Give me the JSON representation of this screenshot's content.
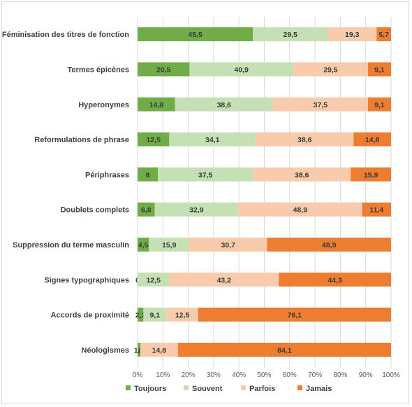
{
  "chart_data": {
    "type": "bar",
    "orientation": "horizontal",
    "stacked": "percent",
    "title": "",
    "xlabel": "",
    "ylabel": "",
    "xlim": [
      0,
      100
    ],
    "grid": true,
    "legend_position": "bottom",
    "categories": [
      "Féminisation des titres de fonction",
      "Termes épicènes",
      "Hyperonymes",
      "Reformulations de phrase",
      "Périphrases",
      "Doublets complets",
      "Suppression du terme masculin",
      "Signes typographiques",
      "Accords de proximité",
      "Néologismes"
    ],
    "series": [
      {
        "name": "Toujours",
        "color": "#70ad47",
        "values": [
          45.5,
          20.5,
          14.8,
          12.5,
          8,
          6.8,
          4.5,
          0,
          2.3,
          1.1
        ],
        "labels": [
          "45,5",
          "20,5",
          "14,8",
          "12,5",
          "8",
          "6,8",
          "4,5",
          "0",
          "2,3",
          "1,1"
        ]
      },
      {
        "name": "Souvent",
        "color": "#c5e0b4",
        "values": [
          29.5,
          40.9,
          38.6,
          34.1,
          37.5,
          32.9,
          15.9,
          12.5,
          9.1,
          0
        ],
        "labels": [
          "29,5",
          "40,9",
          "38,6",
          "34,1",
          "37,5",
          "32,9",
          "15,9",
          "12,5",
          "9,1",
          "0"
        ]
      },
      {
        "name": "Parfois",
        "color": "#f8cbad",
        "values": [
          19.3,
          29.5,
          37.5,
          38.6,
          38.6,
          48.9,
          30.7,
          43.2,
          12.5,
          14.8
        ],
        "labels": [
          "19,3",
          "29,5",
          "37,5",
          "38,6",
          "38,6",
          "48,9",
          "30,7",
          "43,2",
          "12,5",
          "14,8"
        ]
      },
      {
        "name": "Jamais",
        "color": "#ed7d31",
        "values": [
          5.7,
          9.1,
          9.1,
          14.8,
          15.9,
          11.4,
          48.9,
          44.3,
          76.1,
          84.1
        ],
        "labels": [
          "5,7",
          "9,1",
          "9,1",
          "14,8",
          "15,9",
          "11,4",
          "48,9",
          "44,3",
          "76,1",
          "84,1"
        ]
      }
    ],
    "ticks": [
      "0%",
      "10%",
      "20%",
      "30%",
      "40%",
      "50%",
      "60%",
      "70%",
      "80%",
      "90%",
      "100%"
    ]
  }
}
